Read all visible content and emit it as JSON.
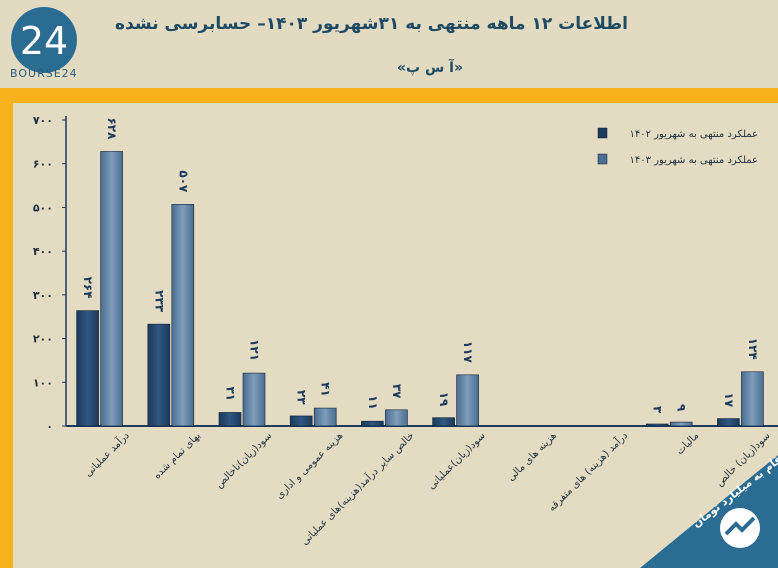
{
  "header": {
    "title": "اطلاعات ۱۲ ماهه منتهی به ۳۱شهریور ۱۴۰۳– حسابرسی نشده",
    "subtitle": "«آ س پ»",
    "logo_text": "BOURSE24",
    "logo_mark": "24"
  },
  "footer": {
    "badge": "ارقام به میلیارد تومان"
  },
  "colors": {
    "series_1402": "#1b3a5c",
    "series_1403": "#4a6d90",
    "frame": "#f7b21b",
    "panel": "#e4dbc3"
  },
  "chart_data": {
    "type": "bar",
    "title": "اطلاعات ۱۲ ماهه منتهی به ۳۱شهریور ۱۴۰۳– حسابرسی نشده",
    "ylim": [
      0,
      700
    ],
    "yticks": [
      "۰",
      "۱۰۰",
      "۲۰۰",
      "۳۰۰",
      "۴۰۰",
      "۵۰۰",
      "۶۰۰",
      "۷۰۰"
    ],
    "legend_position": "top-right",
    "categories": [
      "درآمد عملیاتی",
      "بهای تمام شده",
      "سود(زیان)ناخالص",
      "هزینه عمومی و اداری",
      "خالص سایر درآمد(هزینه)های عملیاتی",
      "سود(زیان)عملیاتی",
      "هزینه های مالی",
      "درآمد (هزینه) های متفرقه",
      "مالیات",
      "سود(زیان) خالص"
    ],
    "series": [
      {
        "name": "عملکرد منتهی به شهریور ۱۴۰۲",
        "values": [
          264,
          233,
          31,
          23,
          11,
          19,
          null,
          null,
          3,
          17
        ],
        "labels": [
          "۲۶۴",
          "۲۳۳",
          "۳۱",
          "۲۳",
          "۱۱",
          "۱۹",
          "",
          "",
          "۳",
          "۱۷"
        ]
      },
      {
        "name": "عملکرد منتهی به شهریور ۱۴۰۳",
        "values": [
          628,
          507,
          121,
          41,
          37,
          117,
          null,
          null,
          9,
          124
        ],
        "labels": [
          "۶۲۸",
          "۵۰۷",
          "۱۲۱",
          "۴۱",
          "۳۷",
          "۱۱۷",
          "",
          "",
          "۹",
          "۱۲۴"
        ]
      }
    ]
  }
}
